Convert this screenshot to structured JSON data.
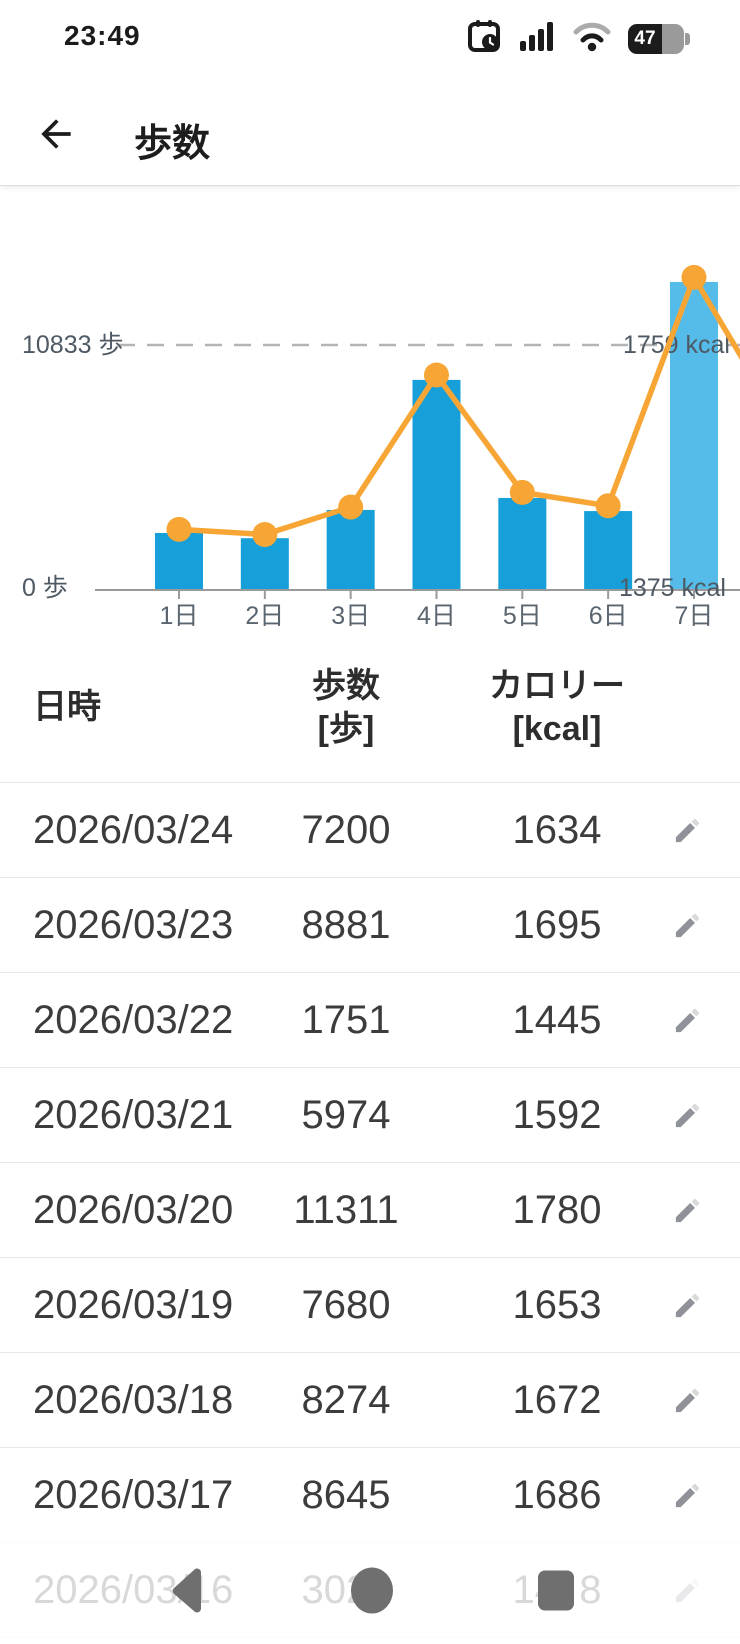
{
  "status_bar": {
    "time": "23:49",
    "battery_percent": "47"
  },
  "app_bar": {
    "title": "歩数"
  },
  "chart_data": {
    "type": "bar+line",
    "categories": [
      "1日",
      "2日",
      "3日",
      "4日",
      "5日",
      "6日",
      "7日"
    ],
    "series": [
      {
        "name": "歩数",
        "type": "bar",
        "unit": "歩",
        "values": [
          2520,
          2290,
          3540,
          9290,
          4070,
          3490,
          13620
        ],
        "color": "#169FD9",
        "highlight_index": 6,
        "highlight_color": "#55BCE9"
      },
      {
        "name": "カロリー",
        "type": "line",
        "unit": "kcal",
        "values": [
          1470,
          1462,
          1505,
          1712,
          1528,
          1507,
          1865
        ],
        "edge_value": 1723,
        "color": "#F7A636"
      }
    ],
    "left_axis": {
      "max_label": "10833 歩",
      "min_label": "0 歩",
      "max_value": 10833,
      "min_value": 0
    },
    "right_axis": {
      "max_label": "1759 kcal",
      "min_label": "1375 kcal",
      "max_value": 1759,
      "min_value": 1375
    },
    "gridline": "dashed",
    "legend_position": "none"
  },
  "table": {
    "headers": {
      "date": "日時",
      "steps": "歩数",
      "steps_sub": "[歩]",
      "kcal": "カロリー",
      "kcal_sub": "[kcal]"
    },
    "rows": [
      {
        "date": "2026/03/24",
        "steps": "7200",
        "kcal": "1634"
      },
      {
        "date": "2026/03/23",
        "steps": "8881",
        "kcal": "1695"
      },
      {
        "date": "2026/03/22",
        "steps": "1751",
        "kcal": "1445"
      },
      {
        "date": "2026/03/21",
        "steps": "5974",
        "kcal": "1592"
      },
      {
        "date": "2026/03/20",
        "steps": "11311",
        "kcal": "1780"
      },
      {
        "date": "2026/03/19",
        "steps": "7680",
        "kcal": "1653"
      },
      {
        "date": "2026/03/18",
        "steps": "8274",
        "kcal": "1672"
      },
      {
        "date": "2026/03/17",
        "steps": "8645",
        "kcal": "1686"
      },
      {
        "date": "2026/03/16",
        "steps_visible": "302",
        "kcal_visible_left": "14",
        "kcal_visible_right": "8",
        "obscured": true
      }
    ]
  },
  "colors": {
    "bar": "#169FD9",
    "bar_highlight": "#55BCE9",
    "line": "#F7A636",
    "axis": "#9A9A9A",
    "grid_dash": "#B4B4B4",
    "axis_label": "#4E5963",
    "x_label": "#5A6570",
    "divider": "#E7E7E7",
    "nav_icon": "#6F6F6F",
    "pencil": "#8F9399"
  }
}
